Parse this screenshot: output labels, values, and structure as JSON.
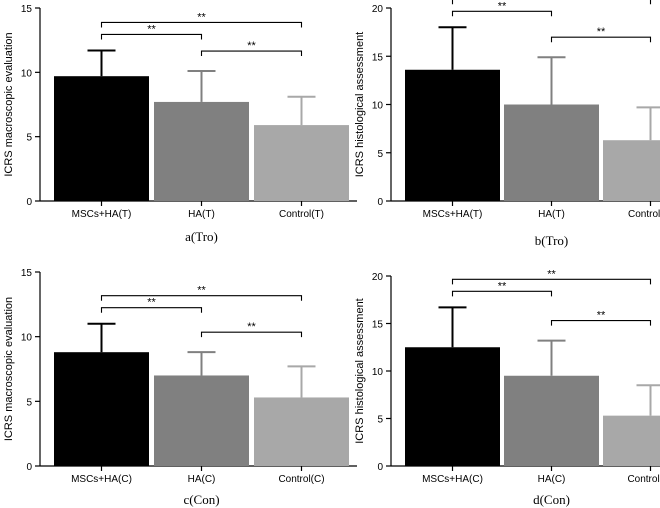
{
  "chart_data": [
    {
      "type": "bar",
      "caption": "a(Tro)",
      "ylabel": "ICRS macroscopic evaluation",
      "ylim": [
        0,
        15
      ],
      "yticks": [
        0,
        5,
        10,
        15
      ],
      "categories": [
        "MSCs+HA(T)",
        "HA(T)",
        "Control(T)"
      ],
      "values": [
        9.7,
        7.7,
        5.9
      ],
      "errors": [
        2.0,
        2.4,
        2.2
      ],
      "colors": [
        "#000000",
        "#808080",
        "#a8a8a8"
      ],
      "significance": [
        {
          "from": 0,
          "to": 2,
          "label": "**"
        },
        {
          "from": 0,
          "to": 1,
          "label": "**"
        },
        {
          "from": 1,
          "to": 2,
          "label": "**"
        }
      ]
    },
    {
      "type": "bar",
      "caption": "b(Tro)",
      "ylabel": "ICRS histological assessment",
      "ylim": [
        0,
        20
      ],
      "yticks": [
        0,
        5,
        10,
        15,
        20
      ],
      "categories": [
        "MSCs+HA(T)",
        "HA(T)",
        "Control(T)"
      ],
      "values": [
        13.6,
        10.0,
        6.3
      ],
      "errors": [
        4.4,
        4.9,
        3.4
      ],
      "colors": [
        "#000000",
        "#808080",
        "#a8a8a8"
      ],
      "significance": [
        {
          "from": 0,
          "to": 2,
          "label": "**"
        },
        {
          "from": 0,
          "to": 1,
          "label": "**"
        },
        {
          "from": 1,
          "to": 2,
          "label": "**"
        }
      ]
    },
    {
      "type": "bar",
      "caption": "c(Con)",
      "ylabel": "ICRS macroscopic evaluation",
      "ylim": [
        0,
        15
      ],
      "yticks": [
        0,
        5,
        10,
        15
      ],
      "categories": [
        "MSCs+HA(C)",
        "HA(C)",
        "Control(C)"
      ],
      "values": [
        8.8,
        7.0,
        5.3
      ],
      "errors": [
        2.2,
        1.8,
        2.4
      ],
      "colors": [
        "#000000",
        "#808080",
        "#a8a8a8"
      ],
      "significance": [
        {
          "from": 0,
          "to": 2,
          "label": "**"
        },
        {
          "from": 0,
          "to": 1,
          "label": "**"
        },
        {
          "from": 1,
          "to": 2,
          "label": "**"
        }
      ]
    },
    {
      "type": "bar",
      "caption": "d(Con)",
      "ylabel": "ICRS histological assessment",
      "ylim": [
        0,
        20
      ],
      "yticks": [
        0,
        5,
        10,
        15,
        20
      ],
      "categories": [
        "MSCs+HA(C)",
        "HA(C)",
        "Control(C)"
      ],
      "values": [
        12.5,
        9.5,
        5.3
      ],
      "errors": [
        4.2,
        3.7,
        3.2
      ],
      "colors": [
        "#000000",
        "#808080",
        "#a8a8a8"
      ],
      "significance": [
        {
          "from": 0,
          "to": 2,
          "label": "**"
        },
        {
          "from": 0,
          "to": 1,
          "label": "**"
        },
        {
          "from": 1,
          "to": 2,
          "label": "**"
        }
      ]
    }
  ]
}
